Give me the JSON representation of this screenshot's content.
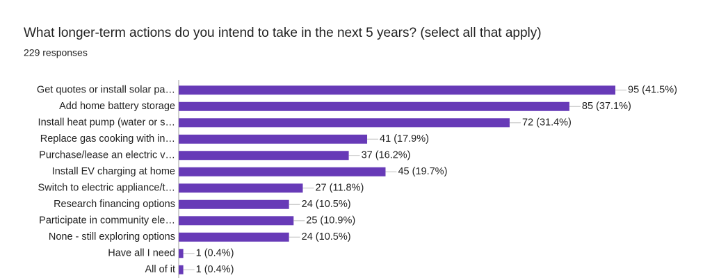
{
  "chart_data": {
    "type": "bar",
    "orientation": "horizontal",
    "title": "What longer-term actions do you intend to take in the next 5 years? (select all that apply)",
    "subtitle": "229 responses",
    "categories": [
      "Get quotes or install solar pa…",
      "Add home battery storage",
      "Install heat pump (water or s…",
      "Replace gas cooking with in…",
      "Purchase/lease an electric v…",
      "Install EV charging at home",
      "Switch to electric appliance/t…",
      "Research financing options",
      "Participate in community ele…",
      "None - still exploring options",
      "Have all I need",
      "All of it"
    ],
    "values": [
      95,
      85,
      72,
      41,
      37,
      45,
      27,
      24,
      25,
      24,
      1,
      1
    ],
    "value_labels": [
      "95 (41.5%)",
      "85 (37.1%)",
      "72 (31.4%)",
      "41 (17.9%)",
      "37 (16.2%)",
      "45 (19.7%)",
      "27 (11.8%)",
      "24 (10.5%)",
      "25 (10.9%)",
      "24 (10.5%)",
      "1 (0.4%)",
      "1 (0.4%)"
    ],
    "color": "#673ab7"
  }
}
